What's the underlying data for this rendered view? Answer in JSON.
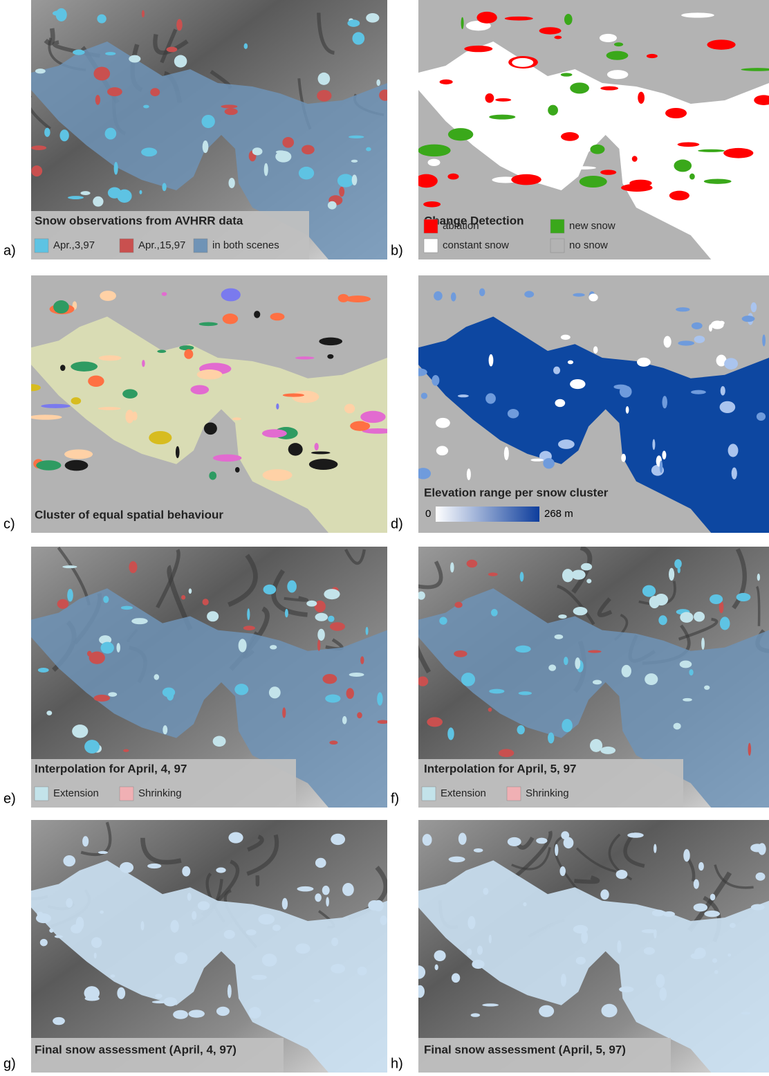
{
  "panels": [
    {
      "label": "a)",
      "title": "Snow observations from AVHRR data",
      "legend": [
        {
          "label": "Apr.,3,97",
          "color": "#5ec3e3"
        },
        {
          "label": "Apr.,15,97",
          "color": "#c9504f"
        },
        {
          "label": "in both scenes",
          "color": "#6f93b6"
        }
      ]
    },
    {
      "label": "b)",
      "title": "Change Detection",
      "legend": [
        {
          "label": "ablation",
          "color": "#ff0000"
        },
        {
          "label": "new snow",
          "color": "#3aa81a"
        },
        {
          "label": "constant snow",
          "color": "#ffffff"
        },
        {
          "label": "no snow",
          "color": "#b3b3b3"
        }
      ]
    },
    {
      "label": "c)",
      "title": "Cluster of equal spatial behaviour"
    },
    {
      "label": "d)",
      "title": "Elevation range per snow cluster",
      "colorbar": {
        "min": "0",
        "max": "268 m",
        "colors": [
          "#ffffff",
          "#0d3d9c"
        ]
      }
    },
    {
      "label": "e)",
      "title": "Interpolation for April, 4, 97",
      "legend": [
        {
          "label": "Extension",
          "color": "#c3e3ea"
        },
        {
          "label": "Shrinking",
          "color": "#f0b0b4"
        }
      ]
    },
    {
      "label": "f)",
      "title": "Interpolation for April, 5, 97",
      "legend": [
        {
          "label": "Extension",
          "color": "#c3e3ea"
        },
        {
          "label": "Shrinking",
          "color": "#f0b0b4"
        }
      ]
    },
    {
      "label": "g)",
      "title": "Final snow assessment (April, 4, 97)"
    },
    {
      "label": "h)",
      "title": "Final snow assessment (April, 5, 97)"
    }
  ]
}
